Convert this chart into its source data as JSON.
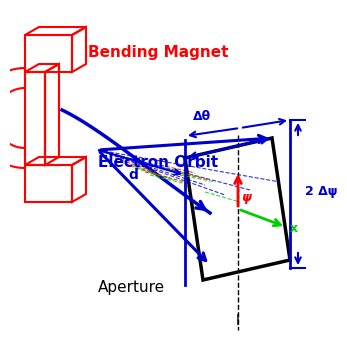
{
  "bg_color": "#ffffff",
  "magnet_color": "#ff0000",
  "orbit_color": "#0000cc",
  "aperture_color": "#000000",
  "red_color": "#ff0000",
  "green_color": "#00cc00",
  "label_bending": "Bending Magnet",
  "label_orbit": "Electron Orbit",
  "label_aperture": "Aperture",
  "label_d": "d",
  "label_dtheta": "Δθ",
  "label_psi": "ψ",
  "label_2dpsi": "2 Δψ",
  "label_l": "l",
  "label_x": "x"
}
